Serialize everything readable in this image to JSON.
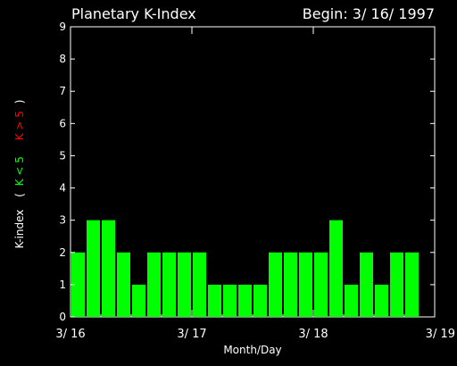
{
  "chart_data": {
    "type": "bar",
    "title": "Planetary K-Index",
    "subtitle": "Begin: 3/ 16/ 1997",
    "xlabel": "Month/Day",
    "ylabel": {
      "prefix": "K-index",
      "paren_open": "(",
      "green_part": "K < 5",
      "red_part": "K > 5",
      "paren_close": ")"
    },
    "ylim": [
      0,
      9
    ],
    "yticks": [
      "0",
      "1",
      "2",
      "3",
      "4",
      "5",
      "6",
      "7",
      "8",
      "9"
    ],
    "xticks": [
      "3/ 16",
      "3/ 17",
      "3/ 18",
      "3/ 19"
    ],
    "bars_per_day": 8,
    "values": [
      2,
      3,
      3,
      2,
      1,
      2,
      2,
      2,
      2,
      1,
      1,
      1,
      1,
      2,
      2,
      2,
      2,
      3,
      1,
      2,
      1,
      2,
      2
    ],
    "colors": {
      "below_threshold": "#00ff00",
      "above_threshold": "#ff0000",
      "text": "#ffffff",
      "background": "#000000"
    }
  }
}
